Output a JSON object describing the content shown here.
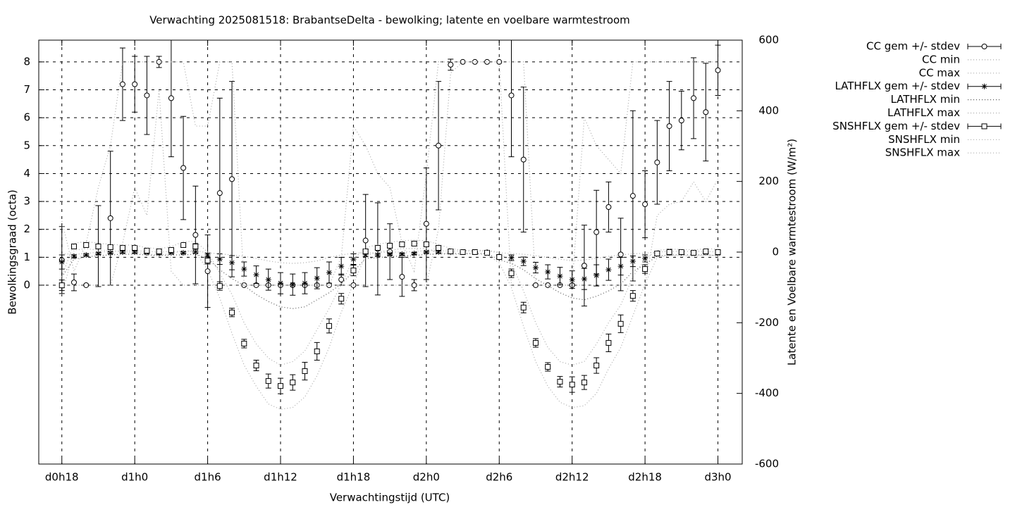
{
  "chart_data": {
    "type": "errorbar-line",
    "title": "Verwachting 2025081518: BrabantseDelta - bewolking; latente en voelbare warmtestroom",
    "x_label": "Verwachtingstijd (UTC)",
    "y_label": "Bewolkingsgraad (octa)",
    "y2_label": "Latente en Voelbare warmtestroom (W/m²)",
    "xlim": [
      16.1,
      74
    ],
    "xticks": [
      {
        "value": 18,
        "label": "d0h18"
      },
      {
        "value": 24,
        "label": "d1h0"
      },
      {
        "value": 30,
        "label": "d1h6"
      },
      {
        "value": 36,
        "label": "d1h12"
      },
      {
        "value": 42,
        "label": "d1h18"
      },
      {
        "value": 48,
        "label": "d2h0"
      },
      {
        "value": 54,
        "label": "d2h6"
      },
      {
        "value": 60,
        "label": "d2h12"
      },
      {
        "value": 66,
        "label": "d2h18"
      },
      {
        "value": 72,
        "label": "d3h0"
      }
    ],
    "ylim": [
      -6.41,
      8.78
    ],
    "yticks": [
      0,
      1,
      2,
      3,
      4,
      5,
      6,
      7,
      8
    ],
    "y2lim": [
      -600,
      600
    ],
    "y2ticks": [
      -600,
      -400,
      -200,
      0,
      200,
      400,
      600
    ],
    "grid": true,
    "legend": "right",
    "x": [
      18,
      19,
      20,
      21,
      22,
      23,
      24,
      25,
      26,
      27,
      28,
      29,
      30,
      31,
      32,
      33,
      34,
      35,
      36,
      37,
      38,
      39,
      40,
      41,
      42,
      43,
      44,
      45,
      46,
      47,
      48,
      49,
      50,
      51,
      52,
      53,
      54,
      55,
      56,
      57,
      58,
      59,
      60,
      61,
      62,
      63,
      64,
      65,
      66,
      67,
      68,
      69,
      70,
      71,
      72
    ],
    "series": [
      {
        "name": "CC gem +/- stdev",
        "color": "#000000",
        "style": "errorbars",
        "marker": "circle",
        "values": [
          0.9,
          0.1,
          0,
          1.4,
          2.4,
          7.2,
          7.2,
          6.8,
          8.0,
          6.7,
          4.2,
          1.8,
          0.5,
          3.3,
          3.8,
          0,
          0,
          0,
          0,
          0,
          0,
          0,
          0,
          0.2,
          0,
          1.6,
          1.3,
          1.2,
          0.3,
          0,
          2.2,
          5.0,
          7.9,
          8,
          8,
          8,
          8,
          6.8,
          4.5,
          0,
          0,
          0,
          0,
          0.7,
          1.9,
          2.8,
          1.1,
          3.2,
          2.9,
          4.4,
          5.7,
          5.9,
          6.7,
          6.2,
          7.7
        ],
        "errors": [
          1.2,
          0.3,
          0,
          1.45,
          2.4,
          1.3,
          1.0,
          1.4,
          0.2,
          2.1,
          1.85,
          1.75,
          1.3,
          3.4,
          3.5,
          0,
          0,
          0,
          0,
          0,
          0,
          0,
          0,
          0.2,
          0,
          1.65,
          1.65,
          1.0,
          0.7,
          0.2,
          2.0,
          2.3,
          0.2,
          0,
          0,
          0,
          0,
          2.2,
          2.6,
          0,
          0,
          0,
          0,
          1.45,
          1.5,
          0.9,
          1.3,
          3.05,
          1.2,
          1.5,
          1.6,
          1.05,
          1.45,
          1.75,
          0.9
        ]
      },
      {
        "name": "CC min",
        "color": "#aaaaaa",
        "style": "dotted",
        "values": [
          0,
          0,
          0,
          0,
          0,
          1.5,
          3.5,
          2.5,
          7.0,
          0.5,
          0,
          0,
          0,
          0,
          0,
          0,
          0,
          0,
          0,
          0,
          0,
          0,
          0,
          0,
          0,
          0,
          0,
          0,
          0,
          0,
          0,
          2.0,
          7.6,
          8,
          8,
          8,
          8,
          0,
          0,
          0,
          0,
          0,
          0,
          0,
          0,
          0,
          0,
          0,
          0,
          2.5,
          2.9,
          3.0,
          3.7,
          3.0,
          3.8
        ]
      },
      {
        "name": "CC max",
        "color": "#aaaaaa",
        "style": "dotted",
        "values": [
          2.3,
          0.5,
          1.5,
          3.5,
          5.0,
          8,
          8,
          8,
          8,
          8,
          8,
          5.7,
          5.7,
          8,
          8,
          0,
          0,
          0,
          0,
          0,
          0,
          0,
          0,
          1.0,
          5.7,
          5.0,
          4.0,
          3.5,
          1.5,
          0.5,
          4.0,
          8,
          8,
          8,
          8,
          8,
          8,
          8,
          8,
          0,
          0,
          0,
          0,
          6.0,
          5.0,
          4.5,
          4.0,
          8,
          8,
          8,
          8,
          8,
          8,
          8,
          8
        ]
      },
      {
        "name": "LATHFLX gem +/- stdev",
        "color": "#000000",
        "style": "errorbars",
        "marker": "asterisk",
        "axis": "y2",
        "values": [
          -28,
          -12,
          -8,
          -4,
          -2,
          0,
          0,
          -2,
          -4,
          -2,
          -2,
          0,
          -8,
          -20,
          -30,
          -48,
          -64,
          -78,
          -88,
          -92,
          -88,
          -74,
          -58,
          -40,
          -20,
          -8,
          -8,
          -6,
          -6,
          -4,
          0,
          0,
          0,
          0,
          0,
          0,
          -12,
          -16,
          -26,
          -44,
          -56,
          -68,
          -78,
          -76,
          -66,
          -50,
          -40,
          -26,
          -18,
          -4,
          -2,
          -2,
          -2,
          -2,
          -4
        ],
        "errors": [
          20,
          4,
          3,
          3,
          3,
          3,
          3,
          3,
          3,
          3,
          3,
          3,
          5,
          15,
          20,
          20,
          25,
          30,
          30,
          30,
          30,
          30,
          30,
          25,
          15,
          5,
          4,
          3,
          3,
          3,
          3,
          3,
          2,
          2,
          2,
          2,
          5,
          8,
          12,
          15,
          20,
          25,
          25,
          30,
          30,
          30,
          25,
          15,
          10,
          5,
          3,
          3,
          3,
          3,
          3
        ]
      },
      {
        "name": "LATHFLX min",
        "color": "#555555",
        "style": "dotted",
        "axis": "y2",
        "values": [
          -70,
          -20,
          -14,
          -10,
          -8,
          -6,
          -6,
          -8,
          -10,
          -8,
          -8,
          -6,
          -18,
          -50,
          -75,
          -95,
          -120,
          -140,
          -155,
          -160,
          -155,
          -135,
          -115,
          -90,
          -55,
          -18,
          -16,
          -12,
          -12,
          -10,
          -6,
          -6,
          -4,
          -4,
          -4,
          -4,
          -22,
          -32,
          -50,
          -75,
          -95,
          -115,
          -130,
          -135,
          -125,
          -110,
          -90,
          -55,
          -35,
          -12,
          -8,
          -8,
          -8,
          -8,
          -10
        ]
      },
      {
        "name": "LATHFLX max",
        "color": "#aaaaaa",
        "style": "dotted",
        "axis": "y2",
        "values": [
          -5,
          -6,
          -4,
          0,
          2,
          4,
          4,
          2,
          0,
          2,
          2,
          4,
          -2,
          -5,
          -8,
          -12,
          -18,
          -25,
          -30,
          -32,
          -30,
          -25,
          -15,
          -8,
          -3,
          -2,
          -2,
          0,
          0,
          2,
          4,
          4,
          3,
          3,
          3,
          3,
          -2,
          -4,
          -6,
          -10,
          -15,
          -20,
          -25,
          -22,
          -18,
          -12,
          -8,
          -5,
          -3,
          0,
          2,
          2,
          2,
          2,
          0
        ]
      },
      {
        "name": "SNSHFLX gem +/- stdev",
        "color": "#000000",
        "style": "errorbars",
        "marker": "square",
        "axis": "y2",
        "values": [
          -94,
          16,
          20,
          16,
          14,
          12,
          12,
          4,
          2,
          6,
          20,
          16,
          -24,
          -96,
          -171,
          -259,
          -321,
          -365,
          -379,
          -369,
          -337,
          -281,
          -209,
          -132,
          -52,
          2,
          12,
          18,
          22,
          24,
          22,
          12,
          2,
          0,
          0,
          -2,
          -14,
          -60,
          -157,
          -257,
          -325,
          -367,
          -375,
          -369,
          -321,
          -257,
          -203,
          -124,
          -48,
          -4,
          0,
          0,
          -2,
          2,
          0
        ],
        "errors": [
          15,
          6,
          5,
          5,
          5,
          5,
          5,
          5,
          5,
          5,
          6,
          8,
          10,
          12,
          12,
          12,
          15,
          20,
          22,
          22,
          25,
          25,
          20,
          15,
          15,
          6,
          5,
          5,
          5,
          5,
          5,
          5,
          5,
          3,
          3,
          3,
          5,
          12,
          15,
          12,
          12,
          15,
          22,
          20,
          22,
          25,
          25,
          15,
          12,
          6,
          8,
          6,
          5,
          5,
          5
        ]
      },
      {
        "name": "SNSHFLX min",
        "color": "#aaaaaa",
        "style": "dotted",
        "axis": "y2",
        "values": [
          -120,
          5,
          10,
          5,
          5,
          0,
          0,
          -5,
          -8,
          -5,
          5,
          0,
          -50,
          -130,
          -230,
          -320,
          -380,
          -430,
          -445,
          -440,
          -410,
          -350,
          -270,
          -170,
          -90,
          -10,
          0,
          5,
          10,
          10,
          10,
          0,
          -8,
          -5,
          -5,
          -8,
          -30,
          -100,
          -210,
          -310,
          -380,
          -425,
          -440,
          -435,
          -400,
          -330,
          -270,
          -180,
          -90,
          -15,
          -10,
          -10,
          -12,
          -8,
          -10
        ]
      },
      {
        "name": "SNSHFLX max",
        "color": "#aaaaaa",
        "style": "dotted",
        "axis": "y2",
        "values": [
          -70,
          25,
          30,
          25,
          22,
          20,
          20,
          12,
          10,
          15,
          30,
          30,
          0,
          -60,
          -120,
          -200,
          -260,
          -300,
          -320,
          -310,
          -280,
          -220,
          -160,
          -90,
          -20,
          12,
          22,
          28,
          32,
          34,
          32,
          22,
          10,
          5,
          5,
          5,
          0,
          -30,
          -110,
          -200,
          -270,
          -310,
          -320,
          -310,
          -260,
          -200,
          -150,
          -70,
          -20,
          5,
          8,
          8,
          6,
          10,
          8
        ]
      }
    ]
  }
}
